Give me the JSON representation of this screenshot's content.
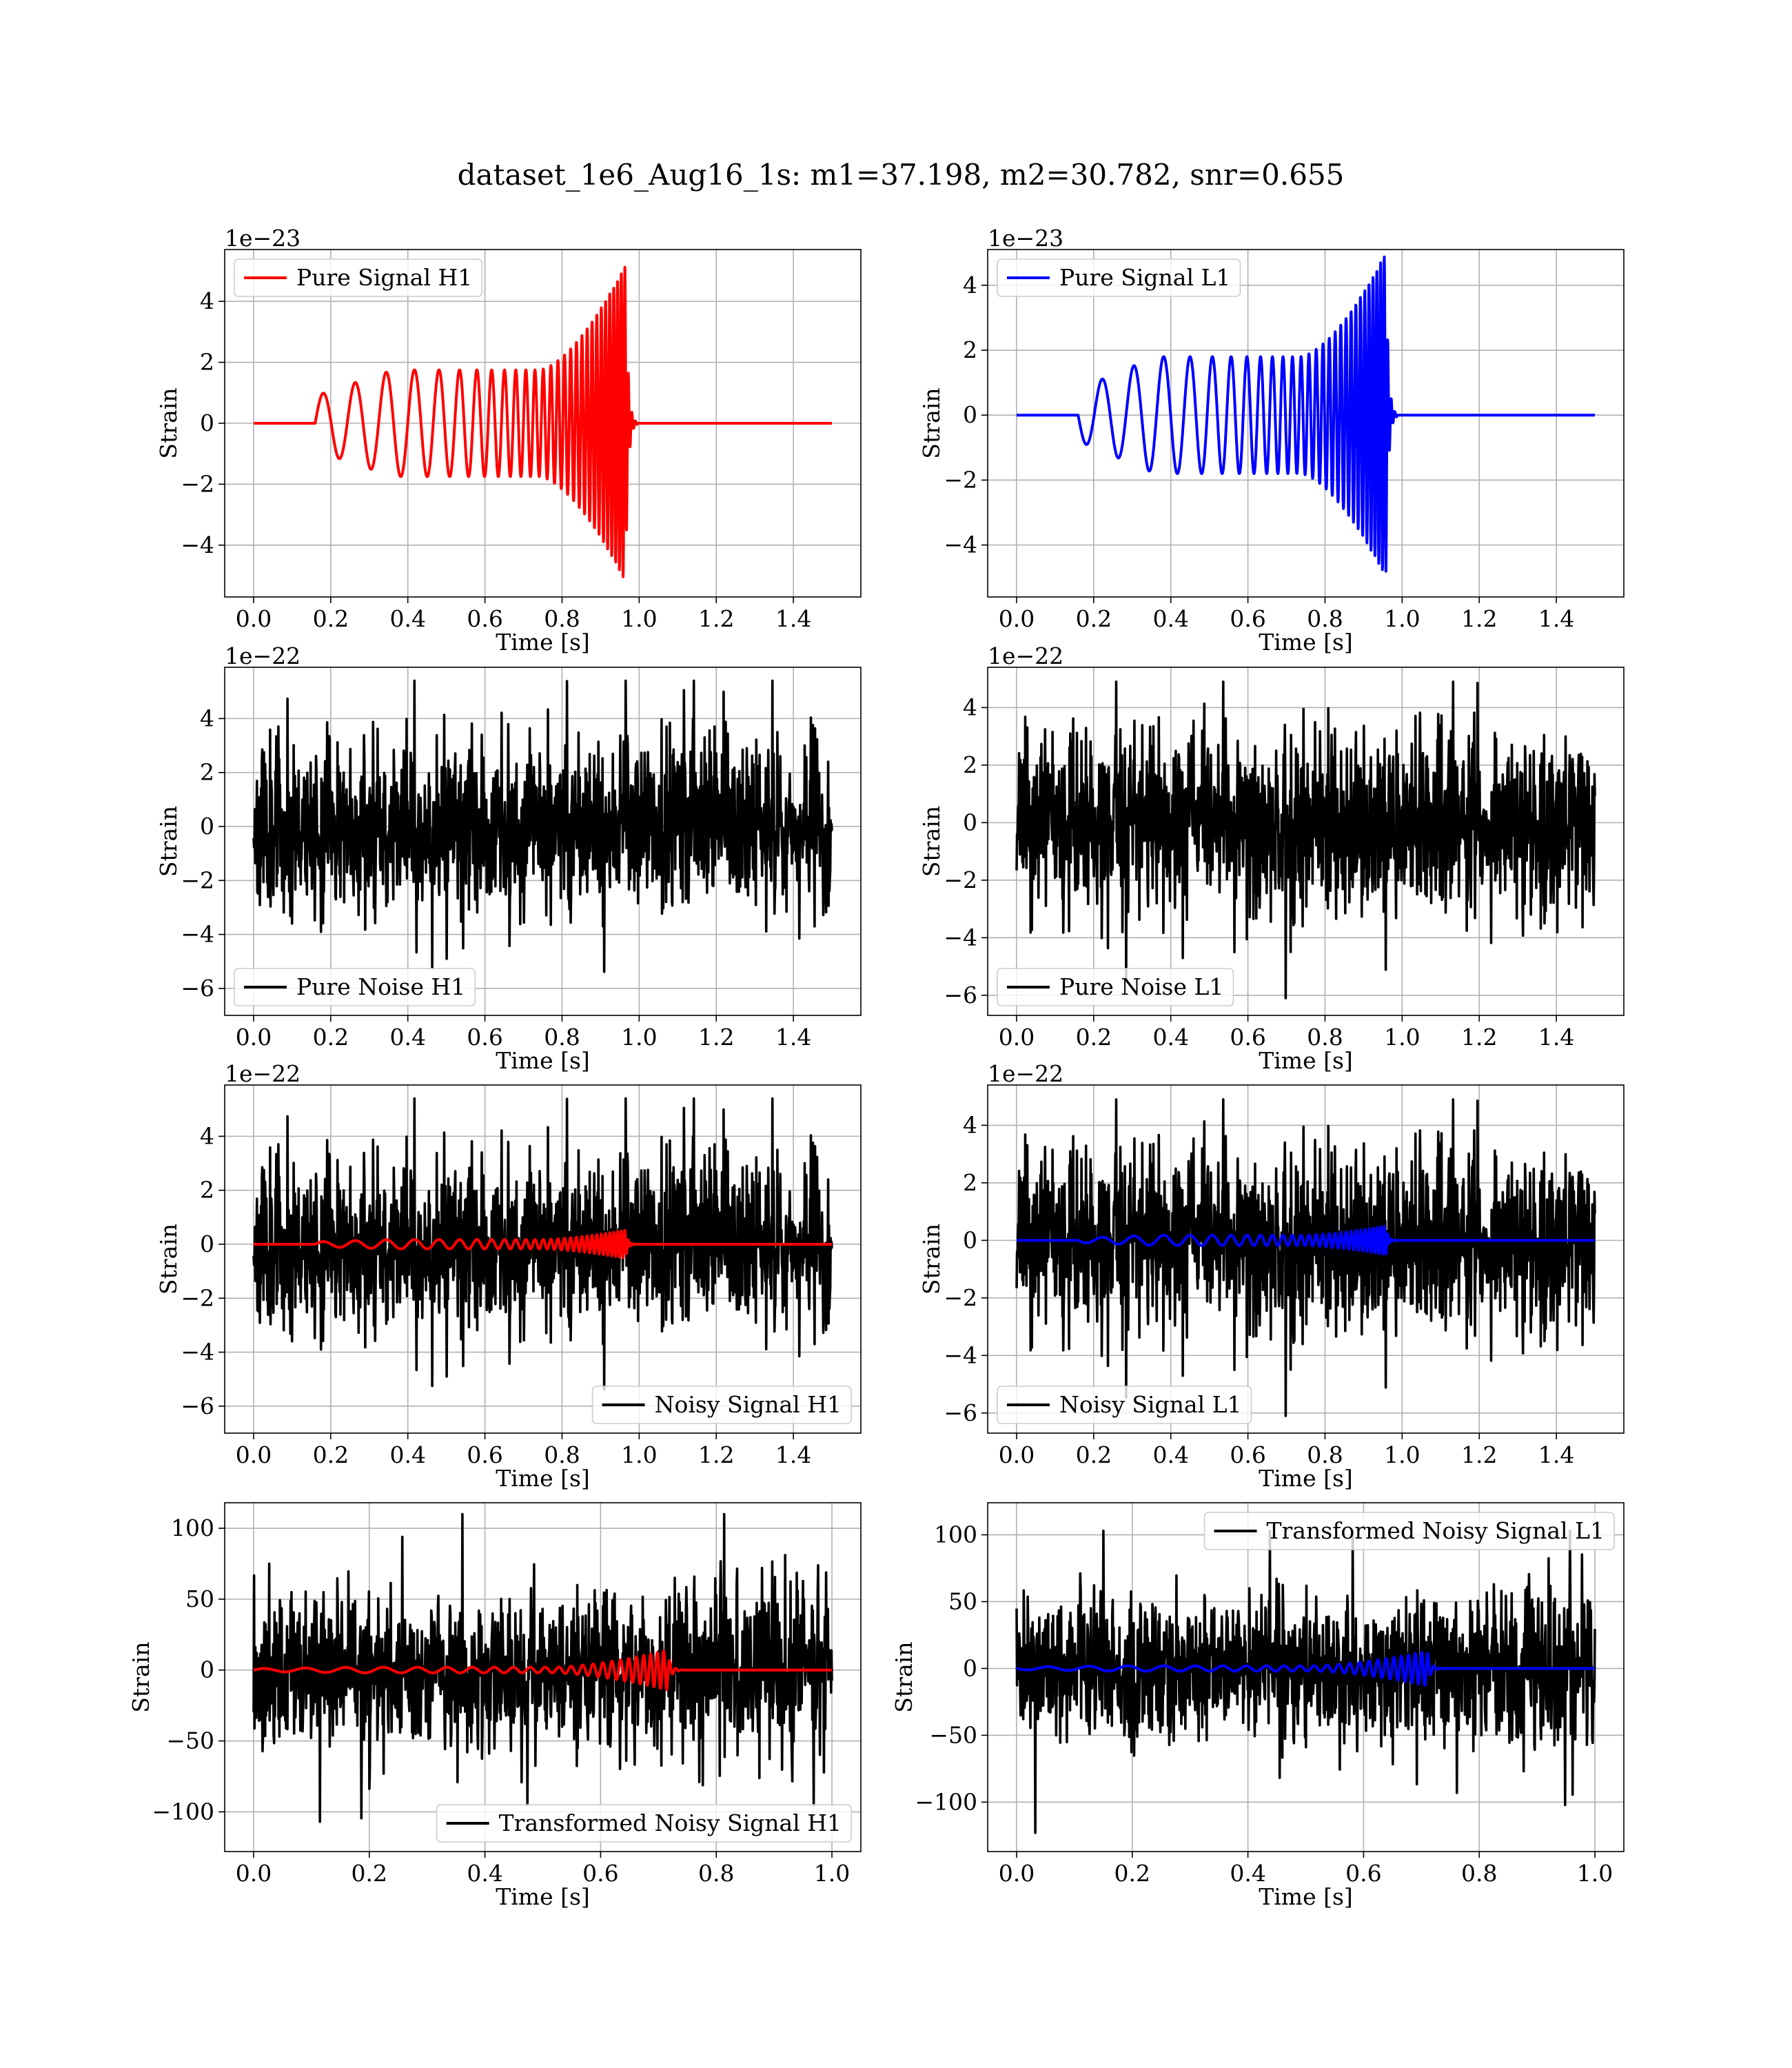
{
  "suptitle": "dataset_1e6_Aug16_1s: m1=37.198, m2=30.782, snr=0.655",
  "colors": {
    "H1": "#ff0000",
    "L1": "#0000ff",
    "noise": "#000000",
    "grid": "#b0b0b0"
  },
  "chart_data": [
    {
      "id": "pure-signal-h1",
      "type": "line",
      "xlabel": "Time [s]",
      "ylabel": "Strain",
      "offset_text": "1e−23",
      "xlim": [
        -0.075,
        1.575
      ],
      "ylim": [
        -5.7,
        5.7
      ],
      "xticks": [
        0.0,
        0.2,
        0.4,
        0.6,
        0.8,
        1.0,
        1.2,
        1.4
      ],
      "xtick_labels": [
        "0.0",
        "0.2",
        "0.4",
        "0.6",
        "0.8",
        "1.0",
        "1.2",
        "1.4"
      ],
      "yticks": [
        -4,
        -2,
        0,
        2,
        4
      ],
      "ytick_labels": [
        "−4",
        "−2",
        "0",
        "2",
        "4"
      ],
      "grid": true,
      "legend_loc": "upper left",
      "series": [
        {
          "name": "Pure Signal H1",
          "color": "#ff0000",
          "kind": "chirp",
          "x_range": [
            0,
            1.5
          ],
          "start": 0.16,
          "merger": 0.965,
          "f0": 12,
          "f1": 110,
          "amp_start": 0.9,
          "amp_mid": 1.75,
          "amp_peak": 5.2,
          "invert": false
        }
      ]
    },
    {
      "id": "pure-signal-l1",
      "type": "line",
      "xlabel": "Time [s]",
      "ylabel": "Strain",
      "offset_text": "1e−23",
      "xlim": [
        -0.075,
        1.575
      ],
      "ylim": [
        -5.6,
        5.1
      ],
      "xticks": [
        0.0,
        0.2,
        0.4,
        0.6,
        0.8,
        1.0,
        1.2,
        1.4
      ],
      "xtick_labels": [
        "0.0",
        "0.2",
        "0.4",
        "0.6",
        "0.8",
        "1.0",
        "1.2",
        "1.4"
      ],
      "yticks": [
        -4,
        -2,
        0,
        2,
        4
      ],
      "ytick_labels": [
        "−4",
        "−2",
        "0",
        "2",
        "4"
      ],
      "grid": true,
      "legend_loc": "upper left",
      "series": [
        {
          "name": "Pure Signal L1",
          "color": "#0000ff",
          "kind": "chirp",
          "x_range": [
            0,
            1.5
          ],
          "start": 0.16,
          "merger": 0.958,
          "f0": 12,
          "f1": 110,
          "amp_start": 0.8,
          "amp_mid": 1.8,
          "amp_peak": 5.0,
          "invert": true
        }
      ]
    },
    {
      "id": "pure-noise-h1",
      "type": "line",
      "xlabel": "Time [s]",
      "ylabel": "Strain",
      "offset_text": "1e−22",
      "xlim": [
        -0.075,
        1.575
      ],
      "ylim": [
        -7.0,
        5.9
      ],
      "xticks": [
        0.0,
        0.2,
        0.4,
        0.6,
        0.8,
        1.0,
        1.2,
        1.4
      ],
      "xtick_labels": [
        "0.0",
        "0.2",
        "0.4",
        "0.6",
        "0.8",
        "1.0",
        "1.2",
        "1.4"
      ],
      "yticks": [
        -6,
        -4,
        -2,
        0,
        2,
        4
      ],
      "ytick_labels": [
        "−6",
        "−4",
        "−2",
        "0",
        "2",
        "4"
      ],
      "grid": true,
      "legend_loc": "lower left",
      "series": [
        {
          "name": "Pure Noise H1",
          "color": "#000000",
          "kind": "noise",
          "x_range": [
            0,
            1.5
          ],
          "seed": 11,
          "sigma": 1.55,
          "clip": [
            -6.5,
            5.4
          ],
          "n": 1400
        }
      ]
    },
    {
      "id": "pure-noise-l1",
      "type": "line",
      "xlabel": "Time [s]",
      "ylabel": "Strain",
      "offset_text": "1e−22",
      "xlim": [
        -0.075,
        1.575
      ],
      "ylim": [
        -6.7,
        5.4
      ],
      "xticks": [
        0.0,
        0.2,
        0.4,
        0.6,
        0.8,
        1.0,
        1.2,
        1.4
      ],
      "xtick_labels": [
        "0.0",
        "0.2",
        "0.4",
        "0.6",
        "0.8",
        "1.0",
        "1.2",
        "1.4"
      ],
      "yticks": [
        -6,
        -4,
        -2,
        0,
        2,
        4
      ],
      "ytick_labels": [
        "−6",
        "−4",
        "−2",
        "0",
        "2",
        "4"
      ],
      "grid": true,
      "legend_loc": "lower left",
      "series": [
        {
          "name": "Pure Noise L1",
          "color": "#000000",
          "kind": "noise",
          "x_range": [
            0,
            1.5
          ],
          "seed": 23,
          "sigma": 1.5,
          "clip": [
            -6.1,
            4.9
          ],
          "n": 1400
        }
      ]
    },
    {
      "id": "noisy-signal-h1",
      "type": "line",
      "xlabel": "Time [s]",
      "ylabel": "Strain",
      "offset_text": "1e−22",
      "xlim": [
        -0.075,
        1.575
      ],
      "ylim": [
        -7.0,
        5.9
      ],
      "xticks": [
        0.0,
        0.2,
        0.4,
        0.6,
        0.8,
        1.0,
        1.2,
        1.4
      ],
      "xtick_labels": [
        "0.0",
        "0.2",
        "0.4",
        "0.6",
        "0.8",
        "1.0",
        "1.2",
        "1.4"
      ],
      "yticks": [
        -6,
        -4,
        -2,
        0,
        2,
        4
      ],
      "ytick_labels": [
        "−6",
        "−4",
        "−2",
        "0",
        "2",
        "4"
      ],
      "grid": true,
      "legend_loc": "lower right",
      "series": [
        {
          "name": "Noisy Signal H1",
          "color": "#000000",
          "kind": "noise",
          "x_range": [
            0,
            1.5
          ],
          "seed": 11,
          "sigma": 1.55,
          "clip": [
            -6.5,
            5.4
          ],
          "n": 1400
        },
        {
          "name": "",
          "color": "#ff0000",
          "kind": "chirp",
          "x_range": [
            0,
            1.5
          ],
          "start": 0.16,
          "merger": 0.965,
          "f0": 12,
          "f1": 110,
          "amp_start": 0.09,
          "amp_mid": 0.175,
          "amp_peak": 0.52,
          "invert": false
        }
      ]
    },
    {
      "id": "noisy-signal-l1",
      "type": "line",
      "xlabel": "Time [s]",
      "ylabel": "Strain",
      "offset_text": "1e−22",
      "xlim": [
        -0.075,
        1.575
      ],
      "ylim": [
        -6.7,
        5.4
      ],
      "xticks": [
        0.0,
        0.2,
        0.4,
        0.6,
        0.8,
        1.0,
        1.2,
        1.4
      ],
      "xtick_labels": [
        "0.0",
        "0.2",
        "0.4",
        "0.6",
        "0.8",
        "1.0",
        "1.2",
        "1.4"
      ],
      "yticks": [
        -6,
        -4,
        -2,
        0,
        2,
        4
      ],
      "ytick_labels": [
        "−6",
        "−4",
        "−2",
        "0",
        "2",
        "4"
      ],
      "grid": true,
      "legend_loc": "lower left",
      "series": [
        {
          "name": "Noisy Signal L1",
          "color": "#000000",
          "kind": "noise",
          "x_range": [
            0,
            1.5
          ],
          "seed": 23,
          "sigma": 1.5,
          "clip": [
            -6.1,
            4.9
          ],
          "n": 1400
        },
        {
          "name": "",
          "color": "#0000ff",
          "kind": "chirp",
          "x_range": [
            0,
            1.5
          ],
          "start": 0.16,
          "merger": 0.958,
          "f0": 12,
          "f1": 110,
          "amp_start": 0.08,
          "amp_mid": 0.18,
          "amp_peak": 0.5,
          "invert": true
        }
      ]
    },
    {
      "id": "transformed-noisy-signal-h1",
      "type": "line",
      "xlabel": "Time [s]",
      "ylabel": "Strain",
      "offset_text": "",
      "xlim": [
        -0.05,
        1.05
      ],
      "ylim": [
        -128,
        118
      ],
      "xticks": [
        0.0,
        0.2,
        0.4,
        0.6,
        0.8,
        1.0
      ],
      "xtick_labels": [
        "0.0",
        "0.2",
        "0.4",
        "0.6",
        "0.8",
        "1.0"
      ],
      "yticks": [
        -100,
        -50,
        0,
        50,
        100
      ],
      "ytick_labels": [
        "−100",
        "−50",
        "0",
        "50",
        "100"
      ],
      "grid": true,
      "legend_loc": "lower right",
      "series": [
        {
          "name": "Transformed Noisy Signal H1",
          "color": "#000000",
          "kind": "noise",
          "x_range": [
            0,
            1.0
          ],
          "seed": 37,
          "sigma": 27,
          "clip": [
            -123,
            110
          ],
          "n": 1300
        },
        {
          "name": "",
          "color": "#ff0000",
          "kind": "chirp",
          "x_range": [
            0,
            1.0
          ],
          "start": 0.0,
          "merger": 0.715,
          "f0": 14,
          "f1": 95,
          "amp_start": 1.0,
          "amp_mid": 2.0,
          "amp_peak": 14,
          "invert": false
        }
      ]
    },
    {
      "id": "transformed-noisy-signal-l1",
      "type": "line",
      "xlabel": "Time [s]",
      "ylabel": "Strain",
      "offset_text": "",
      "xlim": [
        -0.05,
        1.05
      ],
      "ylim": [
        -137,
        124
      ],
      "xticks": [
        0.0,
        0.2,
        0.4,
        0.6,
        0.8,
        1.0
      ],
      "xtick_labels": [
        "0.0",
        "0.2",
        "0.4",
        "0.6",
        "0.8",
        "1.0"
      ],
      "yticks": [
        -100,
        -50,
        0,
        50,
        100
      ],
      "ytick_labels": [
        "−100",
        "−50",
        "0",
        "50",
        "100"
      ],
      "grid": true,
      "legend_loc": "upper right",
      "series": [
        {
          "name": "Transformed Noisy Signal L1",
          "color": "#000000",
          "kind": "noise",
          "x_range": [
            0,
            1.0
          ],
          "seed": 41,
          "sigma": 27,
          "clip": [
            -123,
            103
          ],
          "n": 1300
        },
        {
          "name": "",
          "color": "#0000ff",
          "kind": "chirp",
          "x_range": [
            0,
            1.0
          ],
          "start": 0.0,
          "merger": 0.71,
          "f0": 14,
          "f1": 95,
          "amp_start": 1.0,
          "amp_mid": 2.0,
          "amp_peak": 13,
          "invert": true
        }
      ]
    }
  ]
}
